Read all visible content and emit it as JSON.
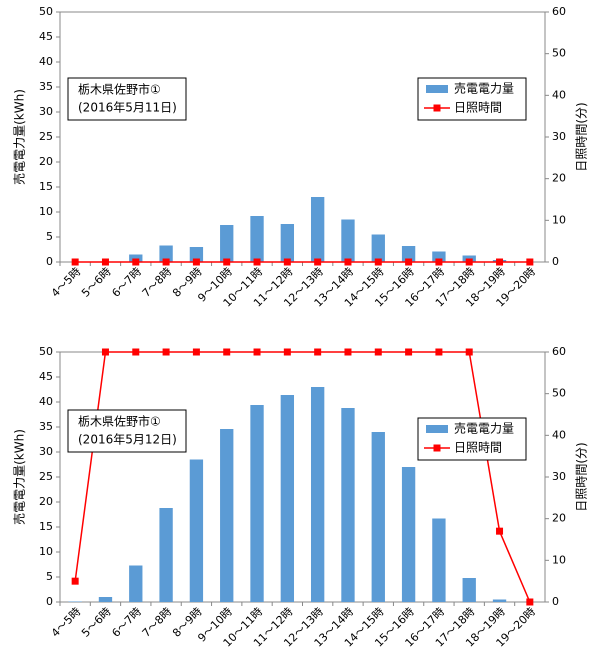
{
  "chart_data": [
    {
      "type": "combo",
      "annotation": [
        "栃木県佐野市①",
        "(2016年5月11日)"
      ],
      "y_label": "売電電力量(kWh)",
      "y2_label": "日照時間(分)",
      "categories": [
        "4～5時",
        "5～6時",
        "6～7時",
        "7～8時",
        "8～9時",
        "9～10時",
        "10～11時",
        "11～12時",
        "12～13時",
        "13～14時",
        "14～15時",
        "15～16時",
        "16～17時",
        "17～18時",
        "18～19時",
        "19～20時"
      ],
      "series": [
        {
          "name": "売電電力量",
          "kind": "bar",
          "color": "#5b9bd5",
          "values": [
            0,
            0.1,
            1.5,
            3.3,
            3,
            7.4,
            9.2,
            7.6,
            13,
            8.5,
            5.5,
            3.2,
            2.1,
            1.3,
            0.4,
            0
          ]
        },
        {
          "name": "日照時間",
          "kind": "line",
          "axis": "y2",
          "color": "#ff0000",
          "values": [
            0,
            0,
            0,
            0,
            0,
            0,
            0,
            0,
            0,
            0,
            0,
            0,
            0,
            0,
            0,
            0
          ]
        }
      ],
      "ylim": [
        0,
        50
      ],
      "yticks": [
        0,
        5,
        10,
        15,
        20,
        25,
        30,
        35,
        40,
        45,
        50
      ],
      "y2lim": [
        0,
        60
      ],
      "y2ticks": [
        0,
        10,
        20,
        30,
        40,
        50,
        60
      ],
      "legend": "right"
    },
    {
      "type": "combo",
      "annotation": [
        "栃木県佐野市①",
        "(2016年5月12日)"
      ],
      "y_label": "売電電力量(kWh)",
      "y2_label": "日照時間(分)",
      "categories": [
        "4～5時",
        "5～6時",
        "6～7時",
        "7～8時",
        "8～9時",
        "9～10時",
        "10～11時",
        "11～12時",
        "12～13時",
        "13～14時",
        "14～15時",
        "15～16時",
        "16～17時",
        "17～18時",
        "18～19時",
        "19～20時"
      ],
      "series": [
        {
          "name": "売電電力量",
          "kind": "bar",
          "color": "#5b9bd5",
          "values": [
            0.1,
            1,
            7.3,
            18.8,
            28.5,
            34.6,
            39.4,
            41.4,
            43,
            38.8,
            34,
            27,
            16.7,
            4.8,
            0.5,
            0
          ]
        },
        {
          "name": "日照時間",
          "kind": "line",
          "axis": "y2",
          "color": "#ff0000",
          "values": [
            5,
            60,
            60,
            60,
            60,
            60,
            60,
            60,
            60,
            60,
            60,
            60,
            60,
            60,
            17,
            0
          ]
        }
      ],
      "ylim": [
        0,
        50
      ],
      "yticks": [
        0,
        5,
        10,
        15,
        20,
        25,
        30,
        35,
        40,
        45,
        50
      ],
      "y2lim": [
        0,
        60
      ],
      "y2ticks": [
        0,
        10,
        20,
        30,
        40,
        50,
        60
      ],
      "legend": "right"
    }
  ]
}
